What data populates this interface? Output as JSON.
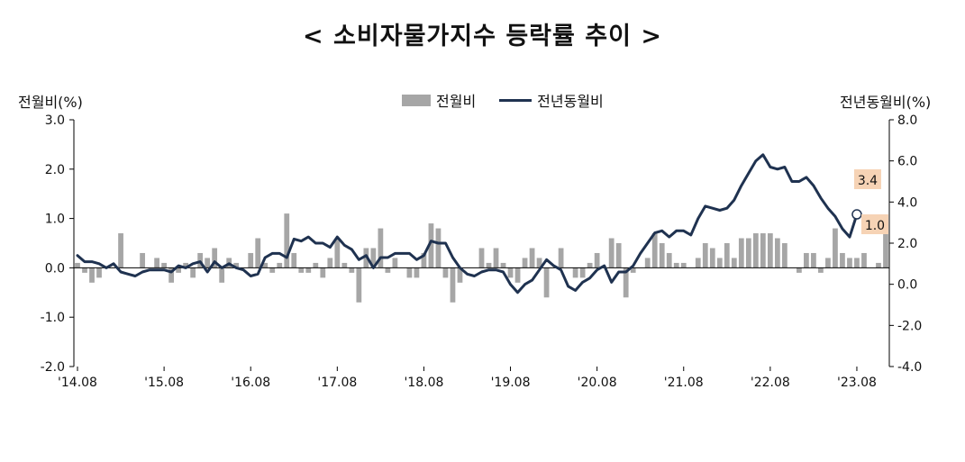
{
  "title": "< 소비자물가지수 등락률 추이 >",
  "axis_titles": {
    "left": "전월비(%)",
    "right": "전년동월비(%)"
  },
  "legend": {
    "bar": "전월비",
    "line": "전년동월비"
  },
  "colors": {
    "bar": "#a6a6a6",
    "line": "#1f3250",
    "callout": "#f6d3b5",
    "axis": "#000000"
  },
  "chart_data": {
    "type": "bar+line",
    "title": "< 소비자물가지수 등락률 추이 >",
    "x_start": "2014-08",
    "x_end": "2023-08",
    "x_tick_labels": [
      "'14.08",
      "'15.08",
      "'16.08",
      "'17.08",
      "'18.08",
      "'19.08",
      "'20.08",
      "'21.08",
      "'22.08",
      "'23.08"
    ],
    "y_left": {
      "label": "전월비(%)",
      "lim": [
        -2.0,
        3.0
      ],
      "ticks": [
        "3.0",
        "2.0",
        "1.0",
        "0.0",
        "-1.0",
        "-2.0"
      ],
      "tick_values": [
        3,
        2,
        1,
        0,
        -1,
        -2
      ]
    },
    "y_right": {
      "label": "전년동월비(%)",
      "lim": [
        -4.0,
        8.0
      ],
      "ticks": [
        "8.0",
        "6.0",
        "4.0",
        "2.0",
        "0.0",
        "-2.0",
        "-4.0"
      ],
      "tick_values": [
        8,
        6,
        4,
        2,
        0,
        -2,
        -4
      ]
    },
    "series": [
      {
        "name": "전월비",
        "kind": "bar",
        "axis": "left",
        "values": [
          0.1,
          -0.1,
          -0.3,
          -0.2,
          0.0,
          0.0,
          0.7,
          0.0,
          0.0,
          0.3,
          0.0,
          0.2,
          0.1,
          -0.3,
          -0.1,
          0.1,
          -0.2,
          0.3,
          0.2,
          0.4,
          -0.3,
          0.2,
          0.1,
          0.0,
          0.3,
          0.6,
          0.1,
          -0.1,
          0.1,
          1.1,
          0.3,
          -0.1,
          -0.1,
          0.1,
          -0.2,
          0.2,
          0.6,
          0.1,
          -0.1,
          -0.7,
          0.4,
          0.4,
          0.8,
          -0.1,
          0.2,
          0.0,
          -0.2,
          -0.2,
          0.3,
          0.9,
          0.8,
          -0.2,
          -0.7,
          -0.3,
          0.0,
          0.0,
          0.4,
          0.1,
          0.4,
          0.1,
          -0.2,
          -0.3,
          0.2,
          0.4,
          0.2,
          -0.6,
          0.0,
          0.4,
          0.0,
          -0.2,
          -0.2,
          0.1,
          0.3,
          0.0,
          0.6,
          0.5,
          -0.6,
          -0.1,
          0.0,
          0.2,
          0.7,
          0.5,
          0.3,
          0.1,
          0.1,
          0.0,
          0.2,
          0.5,
          0.4,
          0.2,
          0.5,
          0.2,
          0.6,
          0.6,
          0.7,
          0.7,
          0.7,
          0.6,
          0.5,
          0.0,
          -0.1,
          0.3,
          0.3,
          -0.1,
          0.2,
          0.8,
          0.3,
          0.2,
          0.2,
          0.3,
          0.0,
          0.1,
          1.0
        ]
      },
      {
        "name": "전년동월비",
        "kind": "line",
        "axis": "right",
        "values": [
          1.4,
          1.1,
          1.1,
          1.0,
          0.8,
          1.0,
          0.6,
          0.5,
          0.4,
          0.6,
          0.7,
          0.7,
          0.7,
          0.6,
          0.9,
          0.8,
          1.0,
          1.1,
          0.6,
          1.1,
          0.8,
          1.0,
          0.8,
          0.7,
          0.4,
          0.5,
          1.3,
          1.5,
          1.5,
          1.3,
          2.2,
          2.1,
          2.3,
          2.0,
          2.0,
          1.8,
          2.3,
          1.9,
          1.7,
          1.2,
          1.4,
          0.8,
          1.3,
          1.3,
          1.5,
          1.5,
          1.5,
          1.2,
          1.4,
          2.1,
          2.0,
          2.0,
          1.3,
          0.8,
          0.5,
          0.4,
          0.6,
          0.7,
          0.7,
          0.6,
          0.0,
          -0.4,
          0.0,
          0.2,
          0.7,
          1.2,
          0.9,
          0.7,
          -0.1,
          -0.3,
          0.1,
          0.3,
          0.7,
          0.9,
          0.1,
          0.6,
          0.6,
          0.9,
          1.5,
          2.0,
          2.5,
          2.6,
          2.3,
          2.6,
          2.6,
          2.4,
          3.2,
          3.8,
          3.7,
          3.6,
          3.7,
          4.1,
          4.8,
          5.4,
          6.0,
          6.3,
          5.7,
          5.6,
          5.7,
          5.0,
          5.0,
          5.2,
          4.8,
          4.2,
          3.7,
          3.3,
          2.7,
          2.3,
          3.4
        ]
      }
    ],
    "annotations": [
      "3.4",
      "1.0"
    ]
  }
}
